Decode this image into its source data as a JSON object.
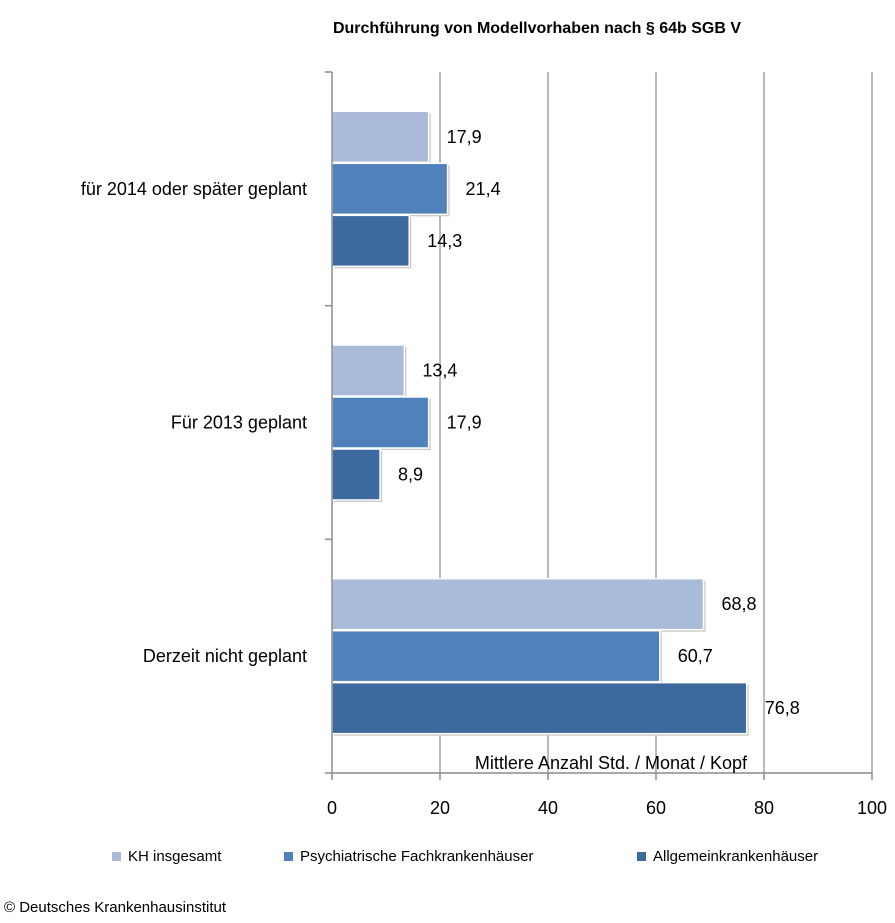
{
  "chart_data": {
    "type": "bar",
    "orientation": "horizontal",
    "title": "Durchführung von Modellvorhaben nach § 64b SGB V",
    "xlabel": "Mittlere Anzahl Std. / Monat / Kopf",
    "ylabel": "",
    "xlim": [
      0,
      100
    ],
    "xticks": [
      "0",
      "20",
      "40",
      "60",
      "80",
      "100"
    ],
    "grid": true,
    "legend_position": "bottom",
    "categories": [
      "für 2014 oder später geplant",
      "Für 2013 geplant",
      "Derzeit nicht geplant"
    ],
    "series": [
      {
        "name": "KH insgesamt",
        "color": "#a9bbd9",
        "values": [
          17.9,
          13.4,
          68.8
        ],
        "labels": [
          "17,9",
          "13,4",
          "68,8"
        ]
      },
      {
        "name": "Psychiatrische Fachkrankenhäuser",
        "color": "#4f81bd",
        "values": [
          21.4,
          17.9,
          60.7
        ],
        "labels": [
          "21,4",
          "17,9",
          "60,7"
        ]
      },
      {
        "name": "Allgemeinkrankenhäuser",
        "color": "#3d6a9e",
        "values": [
          14.3,
          8.9,
          76.8
        ],
        "labels": [
          "14,3",
          "8,9",
          "76,8"
        ]
      }
    ]
  },
  "footer": {
    "source": "© Deutsches Krankenhausinstitut"
  }
}
